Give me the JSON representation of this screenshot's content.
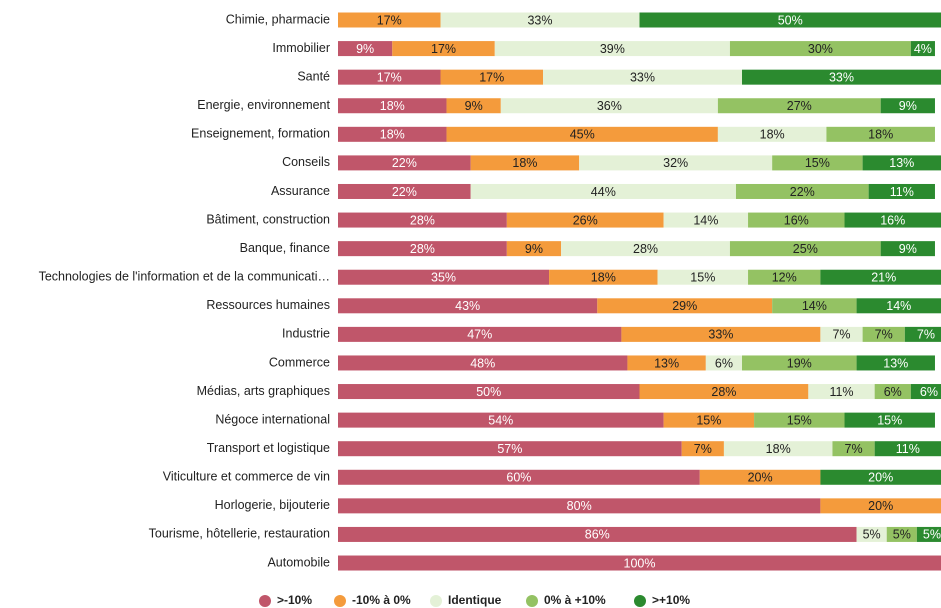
{
  "chart_data": {
    "type": "stacked_barh",
    "categories": [
      "Chimie, pharmacie",
      "Immobilier",
      "Santé",
      "Energie, environnement",
      "Enseignement, formation",
      "Conseils",
      "Assurance",
      "Bâtiment, construction",
      "Banque, finance",
      "Technologies de l'information et de la communicati…",
      "Ressources humaines",
      "Industrie",
      "Commerce",
      "Médias, arts graphiques",
      "Négoce international",
      "Transport et logistique",
      "Viticulture et commerce de vin",
      "Horlogerie, bijouterie",
      "Tourisme, hôtellerie, restauration",
      "Automobile"
    ],
    "xlim": [
      0,
      100
    ],
    "legend": "bottom",
    "series": [
      {
        "name": ">-10%",
        "color": "#c0566a",
        "values": [
          null,
          9,
          17,
          18,
          18,
          22,
          22,
          28,
          28,
          35,
          43,
          47,
          48,
          50,
          54,
          57,
          60,
          80,
          86,
          100
        ],
        "value_labels": [
          null,
          "9%",
          "17%",
          "18%",
          "18%",
          "22%",
          "22%",
          "28%",
          "28%",
          "35%",
          "43%",
          "47%",
          "48%",
          "50%",
          "54%",
          "57%",
          "60%",
          "80%",
          "86%",
          "100%"
        ]
      },
      {
        "name": "-10% à 0%",
        "color": "#f49b3c",
        "values": [
          17,
          17,
          17,
          9,
          45,
          18,
          null,
          26,
          9,
          18,
          29,
          33,
          13,
          28,
          15,
          7,
          20,
          20,
          null,
          null
        ],
        "value_labels": [
          "17%",
          "17%",
          "17%",
          "9%",
          "45%",
          "18%",
          null,
          "26%",
          "9%",
          "18%",
          "29%",
          "33%",
          "13%",
          "28%",
          "15%",
          "7%",
          "20%",
          "20%",
          null,
          null
        ]
      },
      {
        "name": "Identique",
        "color": "#e4f1d7",
        "values": [
          33,
          39,
          33,
          36,
          18,
          32,
          44,
          14,
          28,
          15,
          null,
          7,
          6,
          11,
          null,
          18,
          null,
          null,
          5,
          null
        ],
        "value_labels": [
          "33%",
          "39%",
          "33%",
          "36%",
          "18%",
          "32%",
          "44%",
          "14%",
          "28%",
          "15%",
          null,
          "7%",
          "6%",
          "11%",
          null,
          "18%",
          null,
          null,
          "5%",
          null
        ]
      },
      {
        "name": "0% à +10%",
        "color": "#94c263",
        "values": [
          null,
          30,
          null,
          27,
          18,
          15,
          22,
          16,
          25,
          12,
          14,
          7,
          19,
          6,
          15,
          7,
          null,
          null,
          5,
          null
        ],
        "value_labels": [
          null,
          "30%",
          null,
          "27%",
          "18%",
          "15%",
          "22%",
          "16%",
          "25%",
          "12%",
          "14%",
          "7%",
          "19%",
          "6%",
          "15%",
          "7%",
          null,
          null,
          "5%",
          null
        ]
      },
      {
        "name": ">+10%",
        "color": "#2b8a2f",
        "values": [
          50,
          4,
          33,
          9,
          null,
          13,
          11,
          16,
          9,
          21,
          14,
          7,
          13,
          6,
          15,
          11,
          20,
          null,
          5,
          null
        ],
        "value_labels": [
          "50%",
          "4%",
          "33%",
          "9%",
          null,
          "13%",
          "11%",
          "16%",
          "9%",
          "21%",
          "14%",
          "7%",
          "13%",
          "6%",
          "15%",
          "11%",
          "20%",
          null,
          "5%",
          null
        ]
      }
    ]
  }
}
